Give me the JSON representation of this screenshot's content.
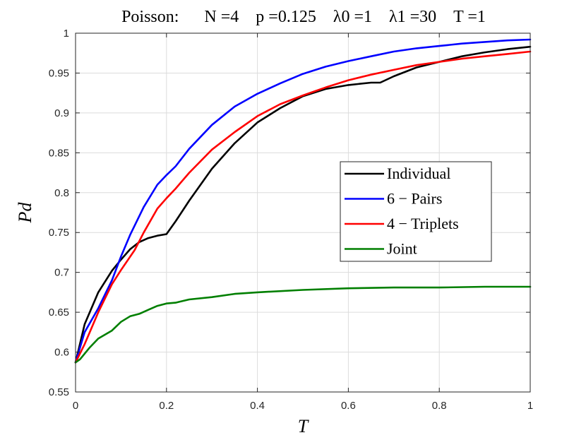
{
  "chart_data": {
    "type": "line",
    "title": "Poisson:      N =4    p =0.125    λ0 =1    λ1 =30    T =1",
    "xlabel": "T",
    "ylabel": "Pd",
    "xlim": [
      0,
      1
    ],
    "ylim": [
      0.55,
      1
    ],
    "xticks": [
      0,
      0.2,
      0.4,
      0.6,
      0.8,
      1
    ],
    "xtick_labels": [
      "0",
      "0.2",
      "0.4",
      "0.6",
      "0.8",
      "1"
    ],
    "yticks": [
      0.55,
      0.6,
      0.65,
      0.7,
      0.75,
      0.8,
      0.85,
      0.9,
      0.95,
      1
    ],
    "ytick_labels": [
      "0.55",
      "0.6",
      "0.65",
      "0.7",
      "0.75",
      "0.8",
      "0.85",
      "0.9",
      "0.95",
      "1"
    ],
    "grid": true,
    "legend_position": "center-right",
    "series": [
      {
        "name": "Individual",
        "color": "#000000",
        "x": [
          0,
          0.02,
          0.05,
          0.08,
          0.1,
          0.12,
          0.14,
          0.16,
          0.18,
          0.2,
          0.22,
          0.25,
          0.3,
          0.35,
          0.4,
          0.45,
          0.5,
          0.55,
          0.6,
          0.65,
          0.67,
          0.7,
          0.75,
          0.8,
          0.85,
          0.9,
          0.95,
          1
        ],
        "y": [
          0.587,
          0.635,
          0.675,
          0.702,
          0.716,
          0.729,
          0.738,
          0.743,
          0.746,
          0.748,
          0.764,
          0.79,
          0.83,
          0.862,
          0.888,
          0.906,
          0.921,
          0.93,
          0.935,
          0.938,
          0.938,
          0.946,
          0.957,
          0.964,
          0.971,
          0.976,
          0.98,
          0.983
        ]
      },
      {
        "name": "6 − Pairs",
        "color": "#0000ff",
        "x": [
          0,
          0.02,
          0.05,
          0.08,
          0.1,
          0.12,
          0.15,
          0.18,
          0.2,
          0.22,
          0.25,
          0.3,
          0.35,
          0.4,
          0.45,
          0.5,
          0.55,
          0.6,
          0.65,
          0.7,
          0.75,
          0.8,
          0.85,
          0.9,
          0.95,
          1
        ],
        "y": [
          0.587,
          0.625,
          0.655,
          0.69,
          0.72,
          0.747,
          0.782,
          0.81,
          0.822,
          0.833,
          0.855,
          0.885,
          0.908,
          0.924,
          0.937,
          0.949,
          0.958,
          0.965,
          0.971,
          0.977,
          0.981,
          0.984,
          0.987,
          0.989,
          0.991,
          0.992
        ]
      },
      {
        "name": "4 − Triplets",
        "color": "#ff0000",
        "x": [
          0,
          0.02,
          0.05,
          0.08,
          0.1,
          0.13,
          0.15,
          0.18,
          0.2,
          0.22,
          0.25,
          0.3,
          0.35,
          0.4,
          0.45,
          0.5,
          0.55,
          0.6,
          0.65,
          0.7,
          0.75,
          0.8,
          0.85,
          0.9,
          0.95,
          1
        ],
        "y": [
          0.587,
          0.61,
          0.65,
          0.685,
          0.703,
          0.728,
          0.75,
          0.78,
          0.793,
          0.805,
          0.825,
          0.854,
          0.876,
          0.896,
          0.911,
          0.922,
          0.932,
          0.941,
          0.948,
          0.954,
          0.96,
          0.964,
          0.968,
          0.971,
          0.974,
          0.977
        ]
      },
      {
        "name": "Joint",
        "color": "#007f00",
        "x": [
          0,
          0.01,
          0.03,
          0.05,
          0.08,
          0.1,
          0.12,
          0.14,
          0.16,
          0.18,
          0.2,
          0.22,
          0.25,
          0.3,
          0.35,
          0.4,
          0.5,
          0.6,
          0.7,
          0.8,
          0.9,
          1
        ],
        "y": [
          0.587,
          0.591,
          0.605,
          0.617,
          0.627,
          0.638,
          0.645,
          0.648,
          0.653,
          0.658,
          0.661,
          0.662,
          0.666,
          0.669,
          0.673,
          0.675,
          0.678,
          0.68,
          0.681,
          0.681,
          0.682,
          0.682
        ]
      }
    ]
  }
}
